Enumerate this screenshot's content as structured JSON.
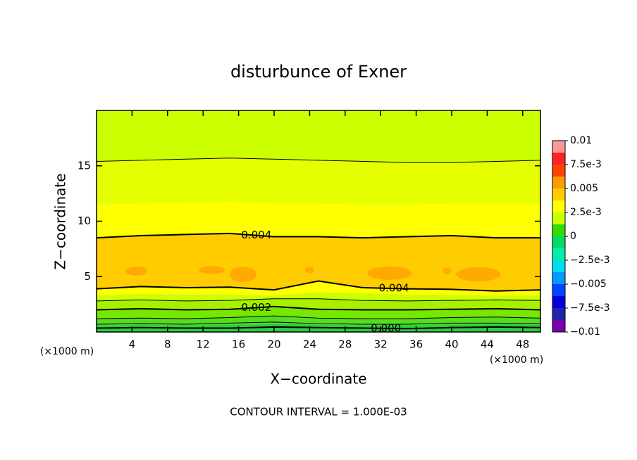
{
  "chart_data": {
    "type": "contour",
    "title": "disturbunce of Exner",
    "x_label": "X−coordinate",
    "y_label": "Z−coordinate",
    "x_unit_left": "(×1000 m)",
    "x_unit_right": "(×1000 m)",
    "footer": "CONTOUR INTERVAL = 1.000E-03",
    "xlim": [
      0,
      50
    ],
    "ylim": [
      0,
      20
    ],
    "xticks": [
      4,
      8,
      12,
      16,
      20,
      24,
      28,
      32,
      36,
      40,
      44,
      48
    ],
    "yticks": [
      5,
      10,
      15
    ],
    "x": [
      0,
      5,
      10,
      15,
      20,
      25,
      30,
      35,
      40,
      45,
      50
    ],
    "fills": [
      {
        "color": "#2ecc40",
        "top": [
          0.6,
          0.65,
          0.6,
          0.65,
          0.75,
          0.65,
          0.6,
          0.6,
          0.65,
          0.7,
          0.65
        ]
      },
      {
        "color": "#55dd22",
        "top": [
          1.2,
          1.25,
          1.2,
          1.3,
          1.45,
          1.25,
          1.2,
          1.2,
          1.3,
          1.35,
          1.25
        ]
      },
      {
        "color": "#77e600",
        "top": [
          2.0,
          2.1,
          2.0,
          2.05,
          2.3,
          2.05,
          2.0,
          2.0,
          2.05,
          2.1,
          2.0
        ]
      },
      {
        "color": "#a6f000",
        "top": [
          2.8,
          2.9,
          2.8,
          2.85,
          3.0,
          3.0,
          2.85,
          2.8,
          2.85,
          2.9,
          2.85
        ]
      },
      {
        "color": "#ccff00",
        "top": [
          3.3,
          3.45,
          3.4,
          3.4,
          3.3,
          3.6,
          3.5,
          3.4,
          3.35,
          3.3,
          3.3
        ]
      },
      {
        "color": "#ffff00",
        "top": [
          3.9,
          4.1,
          4.0,
          4.05,
          3.8,
          4.6,
          4.0,
          3.9,
          3.85,
          3.7,
          3.8
        ]
      },
      {
        "color": "#ffcc00",
        "top": [
          8.5,
          8.7,
          8.8,
          8.9,
          8.6,
          8.6,
          8.5,
          8.6,
          8.7,
          8.5,
          8.5
        ]
      },
      {
        "color": "#ffff00",
        "top": [
          11.5,
          11.6,
          11.7,
          11.8,
          11.6,
          11.6,
          11.5,
          11.5,
          11.6,
          11.6,
          11.6
        ]
      },
      {
        "color": "#e6ff00",
        "top": [
          15.4,
          15.5,
          15.6,
          15.7,
          15.6,
          15.5,
          15.4,
          15.3,
          15.3,
          15.4,
          15.5
        ]
      },
      {
        "color": "#ccff00",
        "top": [
          20,
          20,
          20,
          20,
          20,
          20,
          20,
          20,
          20,
          20,
          20
        ]
      }
    ],
    "patches": {
      "color": "#ffaa00",
      "items": [
        {
          "x": 4.5,
          "z": 5.5,
          "width": 2.5,
          "height": 0.8
        },
        {
          "x": 13,
          "z": 5.6,
          "width": 3,
          "height": 0.7
        },
        {
          "x": 16.5,
          "z": 5.2,
          "width": 3,
          "height": 1.4
        },
        {
          "x": 24,
          "z": 5.6,
          "width": 1,
          "height": 0.6
        },
        {
          "x": 33,
          "z": 5.3,
          "width": 5,
          "height": 1.2
        },
        {
          "x": 39.5,
          "z": 5.5,
          "width": 1,
          "height": 0.6
        },
        {
          "x": 43,
          "z": 5.2,
          "width": 5,
          "height": 1.3
        }
      ]
    },
    "contours": [
      {
        "bold": true,
        "z": [
          0.35,
          0.4,
          0.35,
          0.35,
          0.45,
          0.4,
          0.35,
          0.3,
          0.4,
          0.45,
          0.4
        ],
        "label": "0.000",
        "label_x": 32.6
      },
      {
        "bold": false,
        "z": [
          0.7,
          0.75,
          0.7,
          0.8,
          0.9,
          0.75,
          0.7,
          0.7,
          0.8,
          0.8,
          0.75
        ]
      },
      {
        "bold": false,
        "z": [
          1.2,
          1.25,
          1.2,
          1.3,
          1.45,
          1.25,
          1.2,
          1.2,
          1.3,
          1.35,
          1.25
        ]
      },
      {
        "bold": true,
        "z": [
          2.0,
          2.1,
          2.0,
          2.05,
          2.3,
          2.05,
          2.0,
          2.0,
          2.05,
          2.1,
          2.0
        ],
        "label": "0.002",
        "label_x": 18
      },
      {
        "bold": false,
        "z": [
          2.8,
          2.9,
          2.8,
          2.85,
          3.0,
          3.0,
          2.85,
          2.8,
          2.85,
          2.9,
          2.85
        ]
      },
      {
        "bold": true,
        "z": [
          3.9,
          4.1,
          4.0,
          4.05,
          3.8,
          4.6,
          4.0,
          3.9,
          3.85,
          3.7,
          3.8
        ],
        "label": "0.004",
        "label_x": 33.5
      },
      {
        "bold": true,
        "z": [
          8.5,
          8.7,
          8.8,
          8.9,
          8.6,
          8.6,
          8.5,
          8.6,
          8.7,
          8.5,
          8.5
        ],
        "label": "0.004",
        "label_x": 18
      },
      {
        "bold": false,
        "z": [
          15.4,
          15.5,
          15.6,
          15.7,
          15.6,
          15.5,
          15.4,
          15.3,
          15.3,
          15.4,
          15.5
        ]
      }
    ],
    "colorbar": {
      "levels": [
        -0.01,
        -0.00875,
        -0.0075,
        -0.00625,
        -0.005,
        -0.00375,
        -0.0025,
        -0.00125,
        0,
        0.00125,
        0.0025,
        0.00375,
        0.005,
        0.00625,
        0.0075,
        0.00875,
        0.01
      ],
      "colors": [
        "#7700aa",
        "#2222aa",
        "#0000dd",
        "#0044ff",
        "#0099ff",
        "#00ddee",
        "#00eeaa",
        "#00dd66",
        "#33dd00",
        "#ccff00",
        "#ffff00",
        "#ffcc00",
        "#ff9900",
        "#ff4400",
        "#ff2222",
        "#ff9999"
      ],
      "ticks": [
        {
          "value": 0.01,
          "label": "0.01"
        },
        {
          "value": 0.0075,
          "label": "7.5e-3"
        },
        {
          "value": 0.005,
          "label": "0.005"
        },
        {
          "value": 0.0025,
          "label": "2.5e-3"
        },
        {
          "value": 0,
          "label": "0"
        },
        {
          "value": -0.0025,
          "label": "−2.5e-3"
        },
        {
          "value": -0.005,
          "label": "−0.005"
        },
        {
          "value": -0.0075,
          "label": "−7.5e-3"
        },
        {
          "value": -0.01,
          "label": "−0.01"
        }
      ]
    }
  }
}
